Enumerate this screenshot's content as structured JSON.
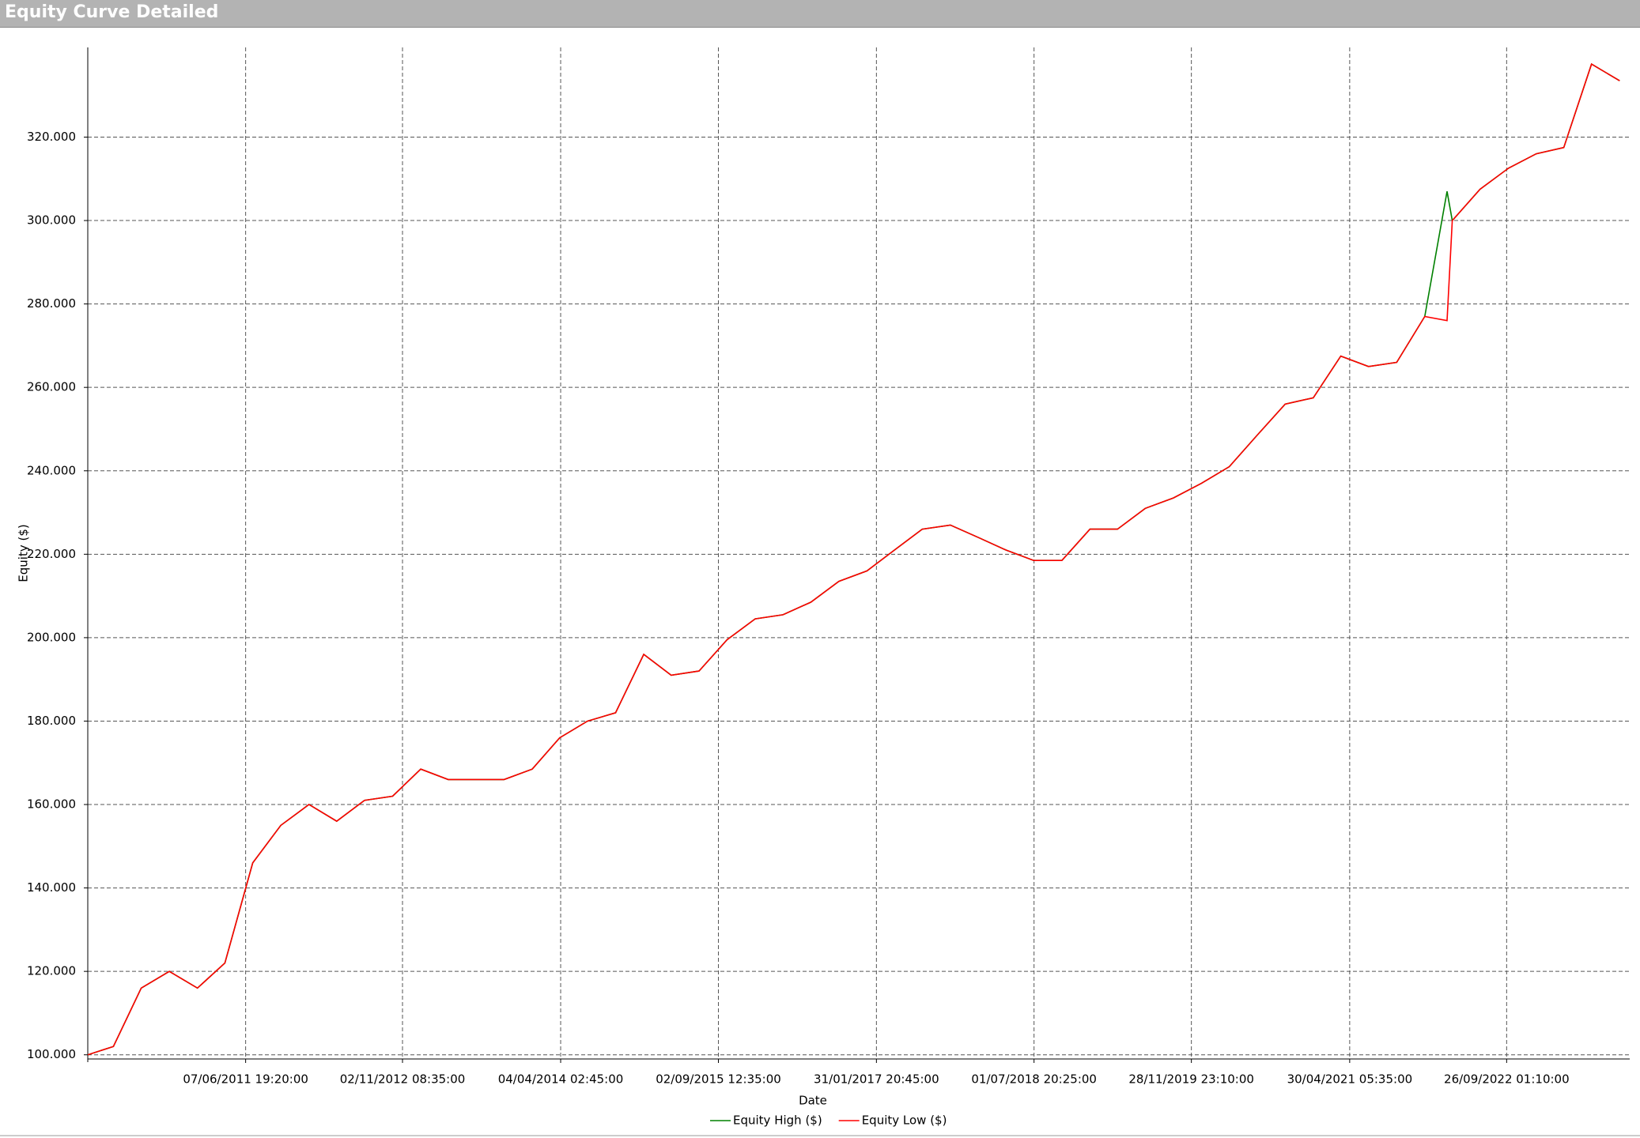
{
  "chart_data": {
    "type": "line",
    "title": "Equity Curve Detailed",
    "x_label": "Date",
    "y_label": "Equity ($)",
    "x": [
      "2010-01-07T00:00:00",
      "2010-04-01T00:00:00",
      "2010-07-01T00:00:00",
      "2010-10-01T00:00:00",
      "2011-01-01T00:00:00",
      "2011-04-01T00:00:00",
      "2011-07-01T00:00:00",
      "2011-10-01T00:00:00",
      "2012-01-01T00:00:00",
      "2012-04-01T00:00:00",
      "2012-07-01T00:00:00",
      "2012-10-01T00:00:00",
      "2013-01-01T00:00:00",
      "2013-04-01T00:00:00",
      "2013-07-01T00:00:00",
      "2013-10-01T00:00:00",
      "2014-01-01T00:00:00",
      "2014-04-01T00:00:00",
      "2014-07-01T00:00:00",
      "2014-10-01T00:00:00",
      "2015-01-01T00:00:00",
      "2015-04-01T00:00:00",
      "2015-07-01T00:00:00",
      "2015-10-01T00:00:00",
      "2016-01-01T00:00:00",
      "2016-04-01T00:00:00",
      "2016-07-01T00:00:00",
      "2016-10-01T00:00:00",
      "2017-01-01T00:00:00",
      "2017-04-01T00:00:00",
      "2017-07-01T00:00:00",
      "2017-10-01T00:00:00",
      "2018-01-01T00:00:00",
      "2018-04-01T00:00:00",
      "2018-07-01T00:00:00",
      "2018-10-01T00:00:00",
      "2019-01-01T00:00:00",
      "2019-04-01T00:00:00",
      "2019-07-01T00:00:00",
      "2019-10-01T00:00:00",
      "2020-01-01T00:00:00",
      "2020-04-01T00:00:00",
      "2020-07-01T00:00:00",
      "2020-10-01T00:00:00",
      "2021-01-01T00:00:00",
      "2021-04-01T00:00:00",
      "2021-07-01T00:00:00",
      "2021-10-01T00:00:00",
      "2022-01-01T00:00:00",
      "2022-03-15T00:00:00",
      "2022-04-01T00:00:00",
      "2022-07-01T00:00:00",
      "2022-10-01T00:00:00",
      "2023-01-01T00:00:00",
      "2023-04-01T00:00:00",
      "2023-07-01T00:00:00",
      "2023-10-01T00:00:00"
    ],
    "series": [
      {
        "name": "Equity High ($)",
        "color": "#008000",
        "values": [
          100000,
          102000,
          116000,
          120000,
          116000,
          122000,
          146000,
          155000,
          160000,
          156000,
          161000,
          162000,
          168500,
          166000,
          166000,
          166000,
          168500,
          176000,
          180000,
          182000,
          196000,
          191000,
          192000,
          199500,
          204500,
          205500,
          208500,
          213500,
          216000,
          221000,
          226000,
          227000,
          224000,
          221000,
          218500,
          218500,
          226000,
          226000,
          231000,
          233500,
          237000,
          241000,
          248500,
          256000,
          257500,
          267500,
          265000,
          266000,
          277000,
          307000,
          300000,
          307500,
          312500,
          316000,
          317500,
          337500,
          333500
        ]
      },
      {
        "name": "Equity Low ($)",
        "color": "#ff0000",
        "values": [
          100000,
          102000,
          116000,
          120000,
          116000,
          122000,
          146000,
          155000,
          160000,
          156000,
          161000,
          162000,
          168500,
          166000,
          166000,
          166000,
          168500,
          176000,
          180000,
          182000,
          196000,
          191000,
          192000,
          199500,
          204500,
          205500,
          208500,
          213500,
          216000,
          221000,
          226000,
          227000,
          224000,
          221000,
          218500,
          218500,
          226000,
          226000,
          231000,
          233500,
          237000,
          241000,
          248500,
          256000,
          257500,
          267500,
          265000,
          266000,
          277000,
          276000,
          300000,
          307500,
          312500,
          316000,
          317500,
          337500,
          333500
        ]
      }
    ],
    "xlim": [
      "2010-01-07T00:00:00",
      "2023-11-03T00:00:00"
    ],
    "xticks": [
      {
        "value": "2011-06-07T19:20:00",
        "label": "07/06/2011 19:20:00"
      },
      {
        "value": "2012-11-02T08:35:00",
        "label": "02/11/2012 08:35:00"
      },
      {
        "value": "2014-04-04T02:45:00",
        "label": "04/04/2014 02:45:00"
      },
      {
        "value": "2015-09-02T12:35:00",
        "label": "02/09/2015 12:35:00"
      },
      {
        "value": "2017-01-31T20:45:00",
        "label": "31/01/2017 20:45:00"
      },
      {
        "value": "2018-07-01T20:25:00",
        "label": "01/07/2018 20:25:00"
      },
      {
        "value": "2019-11-28T23:10:00",
        "label": "28/11/2019 23:10:00"
      },
      {
        "value": "2021-04-30T05:35:00",
        "label": "30/04/2021 05:35:00"
      },
      {
        "value": "2022-09-26T01:10:00",
        "label": "26/09/2022 01:10:00"
      }
    ],
    "ylim": [
      99000,
      341500
    ],
    "yticks": [
      {
        "value": 100000,
        "label": "100.000"
      },
      {
        "value": 120000,
        "label": "120.000"
      },
      {
        "value": 140000,
        "label": "140.000"
      },
      {
        "value": 160000,
        "label": "160.000"
      },
      {
        "value": 180000,
        "label": "180.000"
      },
      {
        "value": 200000,
        "label": "200.000"
      },
      {
        "value": 220000,
        "label": "220.000"
      },
      {
        "value": 240000,
        "label": "240.000"
      },
      {
        "value": 260000,
        "label": "260.000"
      },
      {
        "value": 280000,
        "label": "280.000"
      },
      {
        "value": 300000,
        "label": "300.000"
      },
      {
        "value": 320000,
        "label": "320.000"
      }
    ],
    "grid": true
  }
}
